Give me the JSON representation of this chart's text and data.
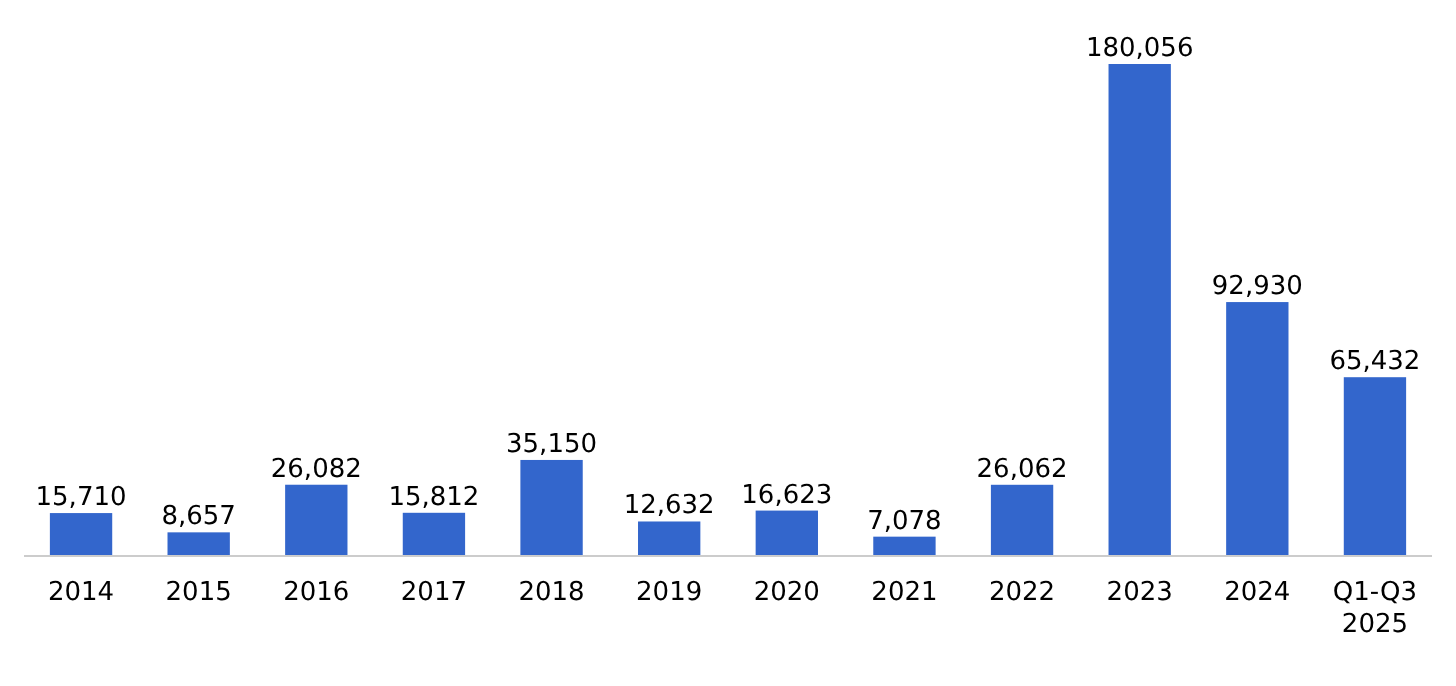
{
  "chart_data": {
    "type": "bar",
    "categories": [
      "2014",
      "2015",
      "2016",
      "2017",
      "2018",
      "2019",
      "2020",
      "2021",
      "2022",
      "2023",
      "2024",
      "Q1-Q3 2025"
    ],
    "values": [
      15710,
      8657,
      26082,
      15812,
      35150,
      12632,
      16623,
      7078,
      26062,
      180056,
      92930,
      65432
    ],
    "value_labels": [
      "15,710",
      "8,657",
      "26,082",
      "15,812",
      "35,150",
      "12,632",
      "16,623",
      "7,078",
      "26,062",
      "180,056",
      "92,930",
      "65,432"
    ],
    "color": "#3366cc"
  }
}
